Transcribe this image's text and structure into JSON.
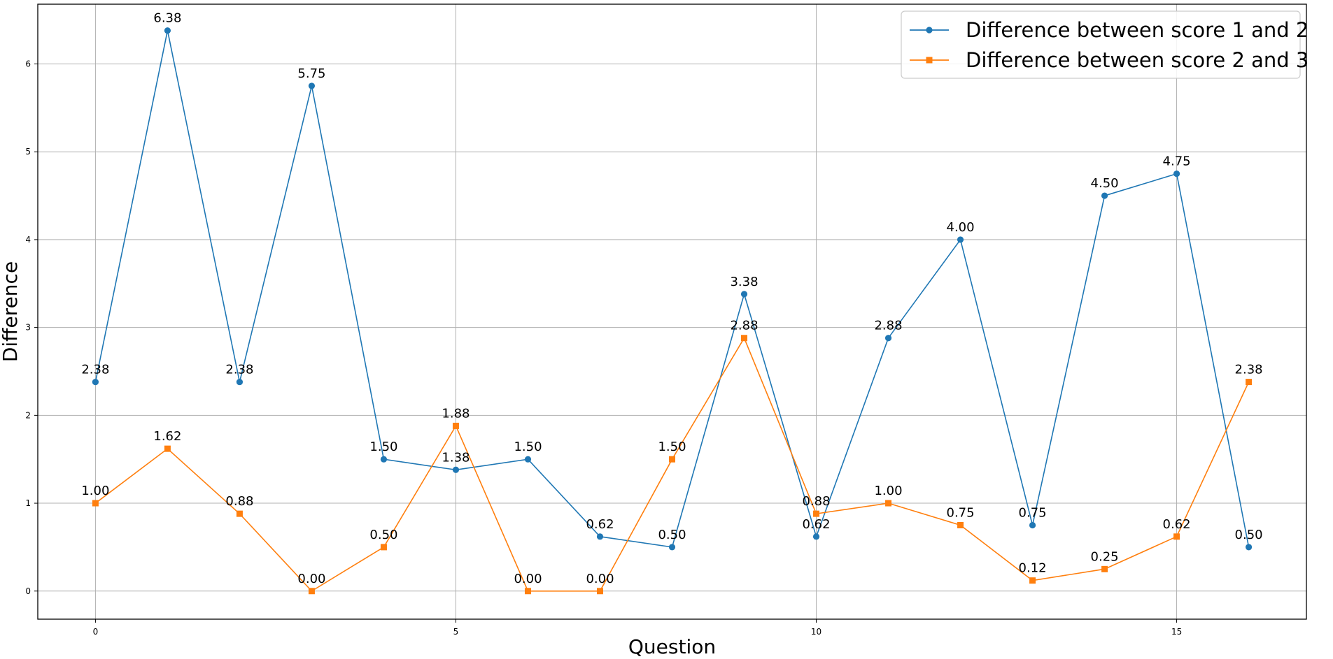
{
  "chart_data": {
    "type": "line",
    "title": "",
    "xlabel": "Question",
    "ylabel": "Difference",
    "xlim": [
      -0.8,
      16.8
    ],
    "ylim": [
      -0.32,
      6.68
    ],
    "x_ticks": [
      0,
      5,
      10,
      15
    ],
    "y_ticks": [
      0,
      1,
      2,
      3,
      4,
      5,
      6
    ],
    "grid": true,
    "legend_position": "top-right",
    "x": [
      0,
      1,
      2,
      3,
      4,
      5,
      6,
      7,
      8,
      9,
      10,
      11,
      12,
      13,
      14,
      15,
      16
    ],
    "series": [
      {
        "name": "Difference between score 1 and 2",
        "color": "#1f77b4",
        "marker": "circle",
        "values": [
          2.38,
          6.38,
          2.38,
          5.75,
          1.5,
          1.38,
          1.5,
          0.62,
          0.5,
          3.38,
          0.62,
          2.88,
          4.0,
          0.75,
          4.5,
          4.75,
          0.5
        ],
        "labels": [
          "2.38",
          "6.38",
          "2.38",
          "5.75",
          "1.50",
          "1.38",
          "1.50",
          "0.62",
          "0.50",
          "3.38",
          "0.62",
          "2.88",
          "4.00",
          "0.75",
          "4.50",
          "4.75",
          "0.50"
        ]
      },
      {
        "name": "Difference between score 2 and 3",
        "color": "#ff7f0e",
        "marker": "square",
        "values": [
          1.0,
          1.62,
          0.88,
          0.0,
          0.5,
          1.88,
          0.0,
          0.0,
          1.5,
          2.88,
          0.88,
          1.0,
          0.75,
          0.12,
          0.25,
          0.62,
          2.38
        ],
        "labels": [
          "1.00",
          "1.62",
          "0.88",
          "0.00",
          "0.50",
          "1.88",
          "0.00",
          "0.00",
          "1.50",
          "2.88",
          "0.88",
          "1.00",
          "0.75",
          "0.12",
          "0.25",
          "0.62",
          "2.38"
        ]
      }
    ]
  }
}
